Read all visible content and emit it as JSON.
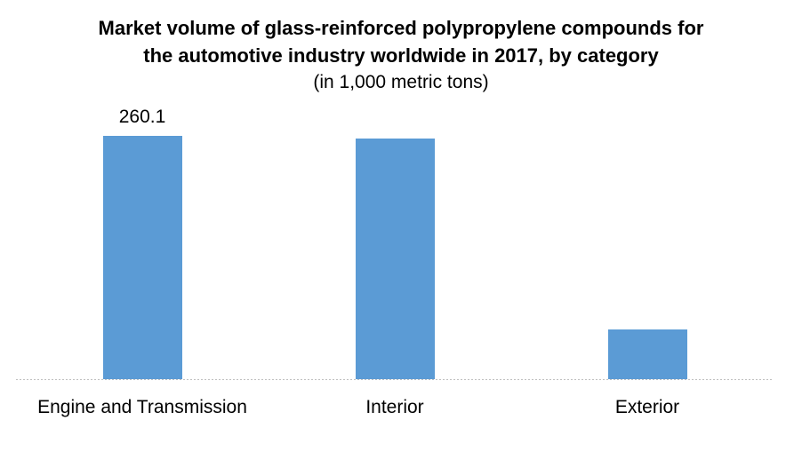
{
  "chart": {
    "title_lines": [
      "Market volume of glass-reinforced polypropylene compounds for",
      "the automotive industry worldwide in 2017, by category"
    ],
    "subtitle": "(in 1,000 metric tons)"
  },
  "chart_data": {
    "type": "bar",
    "title": "Market volume of glass-reinforced polypropylene compounds for the automotive industry worldwide in 2017, by category",
    "subtitle": "(in 1,000 metric tons)",
    "categories": [
      "Engine and Transmission",
      "Interior",
      "Exterior"
    ],
    "values": [
      260.1,
      257,
      53
    ],
    "data_labels": [
      "260.1",
      "",
      ""
    ],
    "xlabel": "",
    "ylabel": "",
    "ylim": [
      0,
      292
    ],
    "grid": false,
    "legend": false,
    "bar_color": "#5B9BD5",
    "axis_line_color": "#BFBFBF",
    "text_color": "#000000",
    "background_color": "#FFFFFF"
  }
}
